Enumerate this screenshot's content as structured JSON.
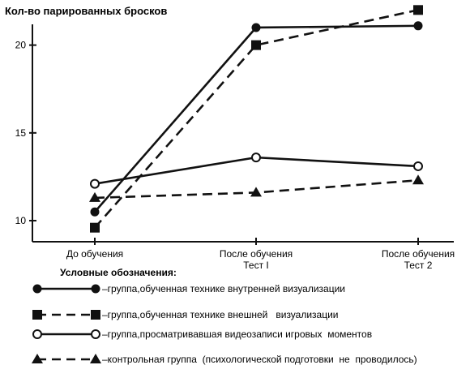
{
  "chart_data": {
    "type": "line",
    "ylabel": "Кол-во парированных бросков",
    "xlabel": "",
    "categories": [
      [
        "До обучения"
      ],
      [
        "После обучения",
        "Тест I"
      ],
      [
        "После обучения",
        "Тест 2"
      ]
    ],
    "yticks": [
      10,
      15,
      20
    ],
    "ylim": [
      8.8,
      22.2
    ],
    "grid": false,
    "legend_title": "Условные обозначения:",
    "legend_position": "bottom",
    "series": [
      {
        "name": "–группа,обученная технике внутренней визуализации",
        "values": [
          10.5,
          21.0,
          21.1
        ],
        "line_style": "solid",
        "marker": "filled-circle"
      },
      {
        "name": "–группа,обученная технике внешней   визуализации",
        "values": [
          9.6,
          20.0,
          22.0
        ],
        "line_style": "dashed",
        "marker": "filled-square"
      },
      {
        "name": "–группа,просматривавшая видеозаписи игровых  моментов",
        "values": [
          12.1,
          13.6,
          13.1
        ],
        "line_style": "solid",
        "marker": "open-circle"
      },
      {
        "name": "–контрольная группа  (психологической подготовки  не  проводилось)",
        "values": [
          11.3,
          11.6,
          12.3
        ],
        "line_style": "dashed",
        "marker": "filled-triangle"
      }
    ],
    "color": "#111111"
  }
}
